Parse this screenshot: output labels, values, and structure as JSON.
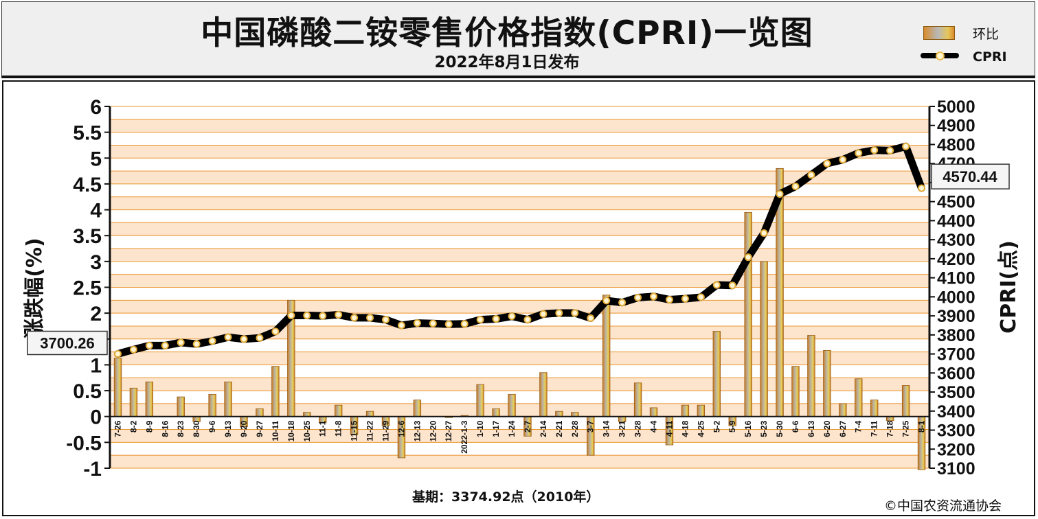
{
  "header": {
    "title": "中国磷酸二铵零售价格指数(CPRI)一览图",
    "subtitle": "2022年8月1日发布"
  },
  "legend": {
    "bar_label": "环比",
    "line_label": "CPRI"
  },
  "footer": {
    "base_note": "基期：3374.92点（2010年）",
    "copyright": "©中国农资流通协会"
  },
  "callouts": {
    "first_value": "3700.26",
    "last_value": "4570.44"
  },
  "colors": {
    "line": "#000000",
    "bar": "#d98a2a",
    "band_light": "#fde4cc",
    "band_white": "#ffffff",
    "grid": "#e9952c"
  },
  "chart_data": {
    "type": "bar",
    "categories": [
      "7-26",
      "8-2",
      "8-9",
      "8-16",
      "8-23",
      "8-30",
      "9-6",
      "9-13",
      "9-20",
      "9-27",
      "10-11",
      "10-18",
      "10-25",
      "11-1",
      "11-8",
      "11-15",
      "11-22",
      "11-29",
      "12-6",
      "12-13",
      "12-20",
      "12-27",
      "2022-1-3",
      "1-10",
      "1-17",
      "1-24",
      "2-7",
      "2-14",
      "2-21",
      "2-28",
      "3-7",
      "3-14",
      "3-21",
      "3-28",
      "4-4",
      "4-11",
      "4-18",
      "4-25",
      "5-2",
      "5-9",
      "5-16",
      "5-23",
      "5-30",
      "6-6",
      "6-13",
      "6-20",
      "6-27",
      "7-4",
      "7-11",
      "7-18",
      "7-25",
      "8-1"
    ],
    "series": [
      {
        "name": "环比",
        "axis": "left",
        "type": "bar",
        "values": [
          1.13,
          0.55,
          0.67,
          0.0,
          0.38,
          -0.1,
          0.43,
          0.67,
          -0.2,
          0.15,
          0.97,
          2.25,
          0.08,
          -0.12,
          0.22,
          -0.35,
          0.1,
          -0.18,
          -0.8,
          0.32,
          0.0,
          -0.02,
          0.02,
          0.62,
          0.15,
          0.43,
          -0.38,
          0.85,
          0.1,
          0.08,
          -0.75,
          2.35,
          -0.1,
          0.65,
          0.17,
          -0.55,
          0.22,
          0.22,
          1.65,
          -0.18,
          3.95,
          3.0,
          4.8,
          0.97,
          1.57,
          1.28,
          0.25,
          0.73,
          0.32,
          -0.08,
          0.6,
          -1.03
        ]
      },
      {
        "name": "CPRI",
        "axis": "right",
        "type": "line",
        "values": [
          3700.26,
          3723,
          3744,
          3744,
          3760,
          3752,
          3768,
          3788,
          3778,
          3784,
          3818,
          3902,
          3902,
          3900,
          3906,
          3890,
          3890,
          3880,
          3850,
          3862,
          3860,
          3856,
          3858,
          3880,
          3884,
          3898,
          3880,
          3910,
          3915,
          3915,
          3888,
          3980,
          3970,
          3996,
          4002,
          3985,
          3990,
          3998,
          4062,
          4060,
          4208,
          4335,
          4540,
          4580,
          4640,
          4700,
          4720,
          4755,
          4770,
          4768,
          4790,
          4570.44
        ]
      }
    ],
    "y_left": {
      "label": "涨跌幅(%)",
      "ylim": [
        -1,
        6
      ],
      "ticks": [
        "-1",
        "-0.5",
        "0",
        "0.5",
        "1",
        "1.5",
        "2",
        "2.5",
        "3",
        "3.5",
        "4",
        "4.5",
        "5",
        "5.5",
        "6"
      ]
    },
    "y_right": {
      "label": "CPRI(点)",
      "ylim": [
        3100,
        5000
      ],
      "ticks": [
        "3100",
        "3200",
        "3300",
        "3400",
        "3500",
        "3600",
        "3700",
        "3800",
        "3900",
        "4000",
        "4100",
        "4200",
        "4300",
        "4400",
        "4500",
        "4600",
        "4700",
        "4800",
        "4900",
        "5000"
      ]
    },
    "grid": true
  }
}
